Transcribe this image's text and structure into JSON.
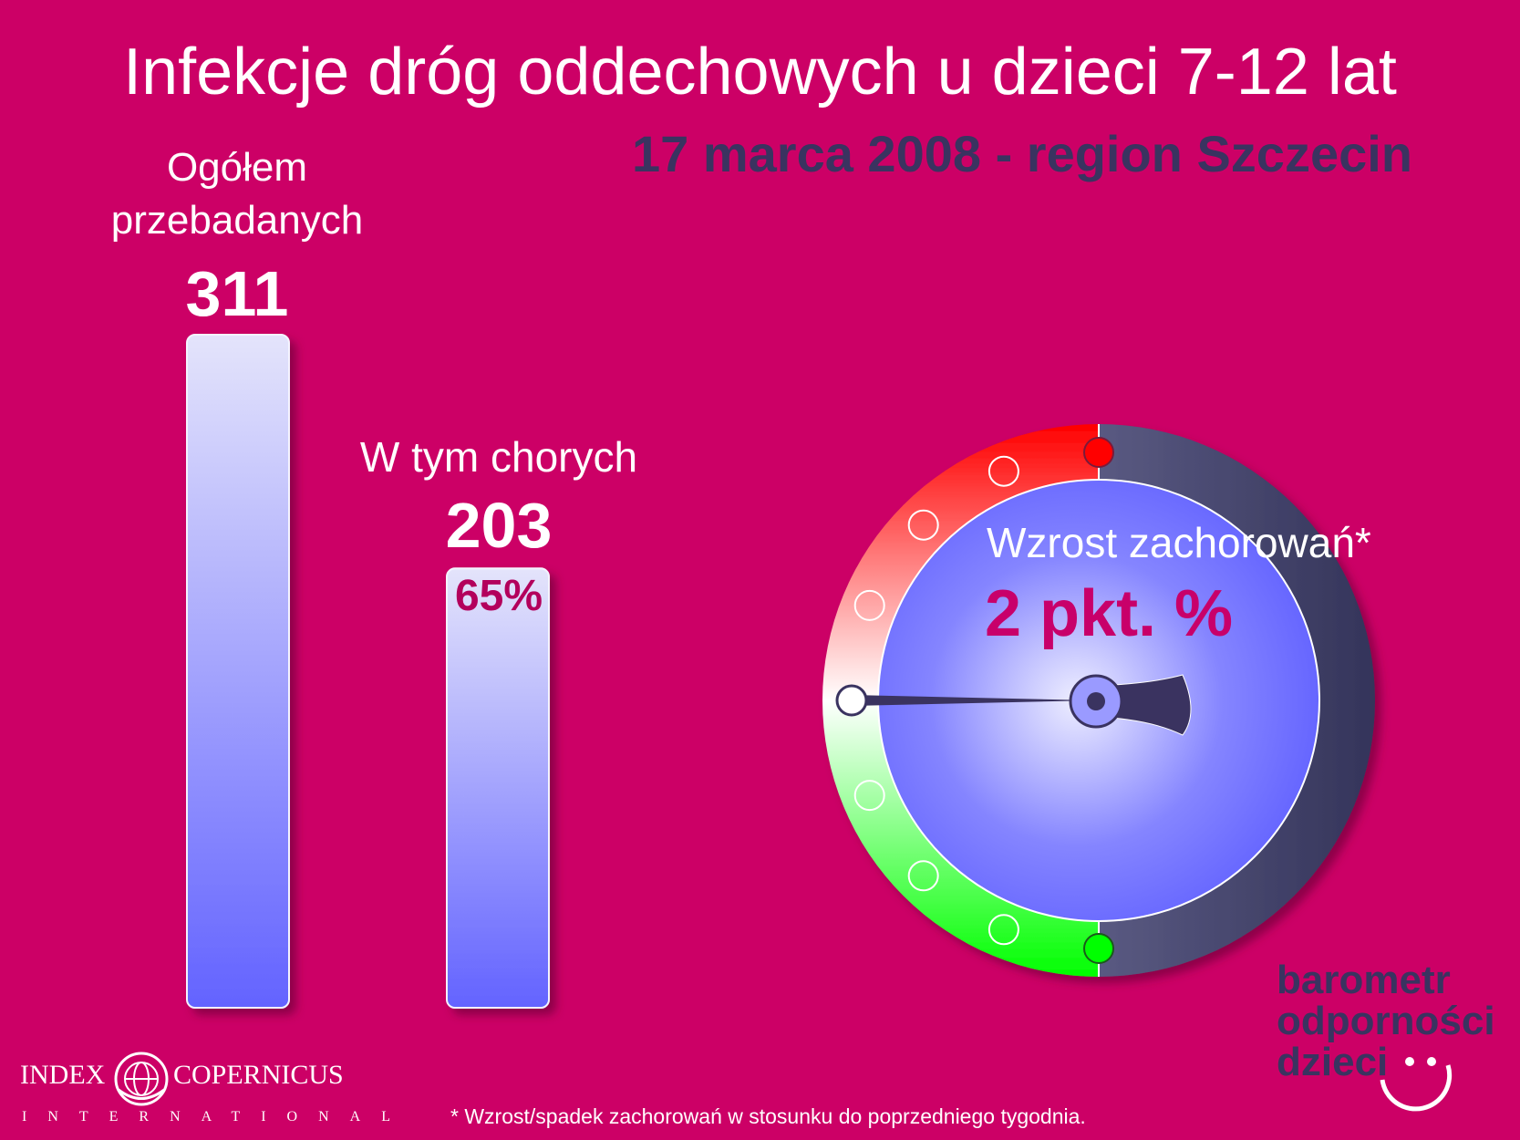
{
  "header": {
    "title": "Infekcje dróg oddechowych u dzieci 7-12 lat",
    "subtitle": "17 marca 2008 - region Szczecin"
  },
  "chart_data": {
    "type": "bar",
    "categories": [
      "Ogółem przebadanych",
      "W tym chorych"
    ],
    "category_lines": [
      [
        "Ogółem",
        "przebadanych"
      ],
      [
        "W tym chorych"
      ]
    ],
    "values": [
      311,
      203
    ],
    "value_labels": [
      "311",
      "203"
    ],
    "share_label": "65%",
    "share": 0.65,
    "colors": {
      "bar_top": "#e2e2fb",
      "bar_bottom": "#6666ff",
      "background": "#cc0066"
    }
  },
  "gauge": {
    "label": "Wzrost zachorowań*",
    "value_text": "2 pkt. %",
    "colors": {
      "danger": "#ff0000",
      "neutral": "#ffffff",
      "ok": "#00ff00",
      "dark": "#3a3a60",
      "dial": "#6666ff"
    }
  },
  "footnote": "* Wzrost/spadek zachorowań w stosunku do poprzedniego tygodnia.",
  "logo": {
    "left_word": "INDEX",
    "right_word": "COPERNICUS",
    "sub": "INTERNATIONAL"
  },
  "brand": {
    "line1": "barometr",
    "line2": "odporności",
    "line3": "dzieci"
  }
}
